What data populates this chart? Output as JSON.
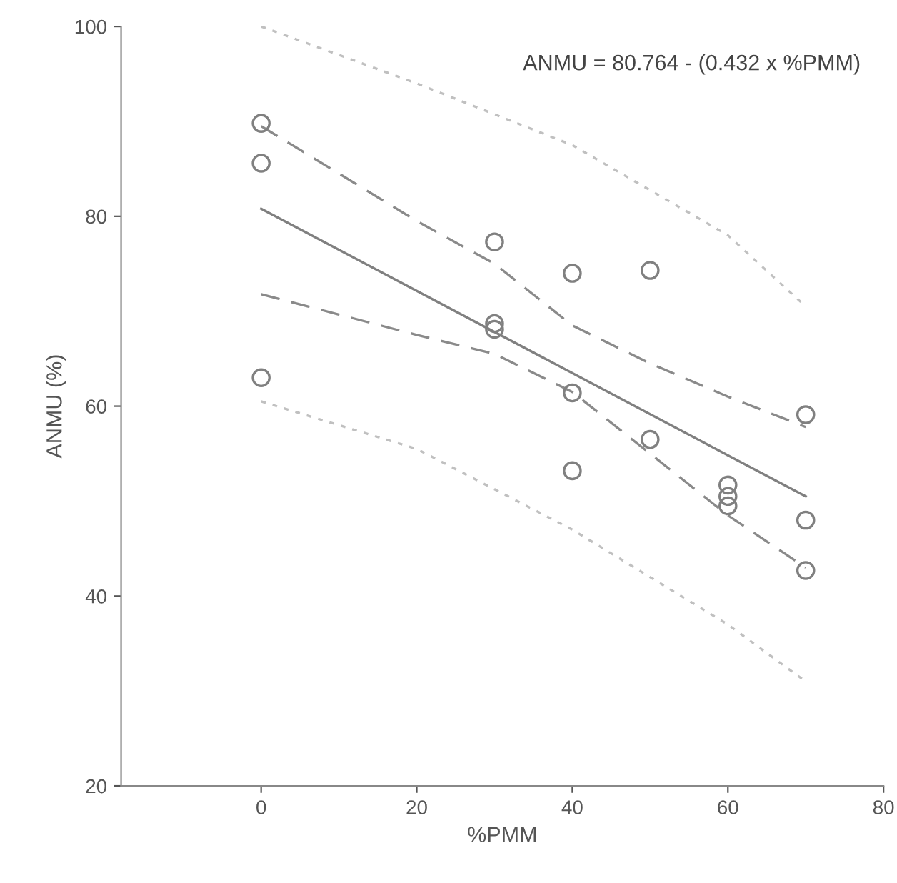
{
  "chart_data": {
    "type": "scatter",
    "xlabel": "%PMM",
    "ylabel": "ANMU (%)",
    "annotations": [
      "ANMU = 80.764 - (0.432 x %PMM)"
    ],
    "xlim": [
      -18,
      80
    ],
    "ylim": [
      20,
      100
    ],
    "xticks": [
      0,
      20,
      40,
      60,
      80
    ],
    "yticks": [
      20,
      40,
      60,
      80,
      100
    ],
    "grid": false,
    "legend": false,
    "series": [
      {
        "color": "#808080",
        "marker": "circle",
        "x": [
          0,
          0,
          0,
          30,
          30,
          30,
          40,
          40,
          40,
          50,
          50,
          60,
          60,
          60,
          70,
          70,
          70
        ],
        "values": [
          89.8,
          85.6,
          63.0,
          77.3,
          68.7,
          68.1,
          74.0,
          61.4,
          53.2,
          74.3,
          56.5,
          51.7,
          50.5,
          49.5,
          59.1,
          48.0,
          42.7
        ]
      },
      {
        "type": "line",
        "color": "#808080",
        "line_style": "solid",
        "marker": "none",
        "x": [
          0,
          70
        ],
        "values": [
          80.8,
          50.5
        ]
      },
      {
        "type": "line",
        "color": "#8a8a8a",
        "line_style": "dashed",
        "marker": "none",
        "x": [
          0,
          20,
          30,
          40,
          50,
          60,
          70
        ],
        "values": [
          89.5,
          79.5,
          75.0,
          68.5,
          64.5,
          61.0,
          57.8
        ]
      },
      {
        "type": "line",
        "color": "#8a8a8a",
        "line_style": "dashed",
        "marker": "none",
        "x": [
          0,
          20,
          30,
          40,
          50,
          60,
          70
        ],
        "values": [
          71.8,
          67.5,
          65.5,
          61.5,
          55.0,
          48.5,
          43.0
        ]
      },
      {
        "type": "line",
        "color": "#c0c0c0",
        "line_style": "dotted",
        "marker": "none",
        "x": [
          0,
          20,
          40,
          60,
          70
        ],
        "values": [
          100,
          94,
          87.5,
          78,
          70.5
        ]
      },
      {
        "type": "line",
        "color": "#c0c0c0",
        "line_style": "dotted",
        "marker": "none",
        "x": [
          0,
          20,
          40,
          60,
          70
        ],
        "values": [
          60.5,
          55.5,
          47,
          37,
          31
        ]
      }
    ]
  }
}
